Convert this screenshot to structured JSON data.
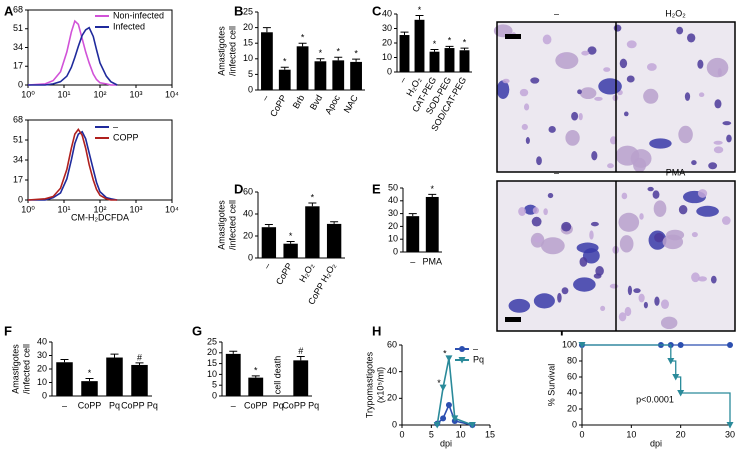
{
  "chart_data": [
    {
      "type": "line",
      "panel": "A",
      "log_x": true,
      "frame": true,
      "x": [
        1,
        3,
        5,
        8,
        12,
        16,
        20,
        25,
        32,
        40,
        50,
        65,
        80,
        100,
        150,
        200,
        300
      ],
      "series": [
        {
          "name": "Non-infected",
          "color": "#d152d8",
          "values": [
            0,
            1,
            4,
            12,
            30,
            48,
            58,
            55,
            42,
            30,
            20,
            10,
            5,
            2,
            1,
            0,
            0
          ]
        },
        {
          "name": "Infected",
          "color": "#1f2a9c",
          "values": [
            0,
            0,
            1,
            3,
            8,
            16,
            25,
            35,
            45,
            50,
            52,
            44,
            32,
            20,
            8,
            3,
            0
          ]
        }
      ],
      "xlim": [
        1,
        10000
      ],
      "xticks": [
        {
          "value": 1,
          "label": "10⁰"
        },
        {
          "value": 10,
          "label": "10¹"
        },
        {
          "value": 100,
          "label": "10²"
        },
        {
          "value": 1000,
          "label": "10³"
        },
        {
          "value": 10000,
          "label": "10⁴"
        }
      ],
      "ylim": [
        0,
        68
      ],
      "yticks": [
        0,
        17,
        34,
        51,
        68
      ]
    },
    {
      "type": "line",
      "log_x": true,
      "frame": true,
      "xlabel": "CM-H₂DCFDA",
      "x": [
        1,
        3,
        5,
        8,
        12,
        16,
        20,
        25,
        32,
        40,
        50,
        65,
        80,
        100,
        150,
        200,
        300
      ],
      "series": [
        {
          "name": "–",
          "color": "#1f2a9c",
          "values": [
            0,
            0,
            2,
            6,
            18,
            34,
            48,
            56,
            58,
            52,
            40,
            26,
            15,
            7,
            2,
            1,
            0
          ]
        },
        {
          "name": "COPP",
          "color": "#b0201e",
          "values": [
            0,
            1,
            3,
            10,
            26,
            44,
            56,
            60,
            55,
            44,
            30,
            17,
            9,
            4,
            1,
            0,
            0
          ]
        }
      ],
      "xlim": [
        1,
        10000
      ],
      "xticks": [
        {
          "value": 1,
          "label": "10⁰"
        },
        {
          "value": 10,
          "label": "10¹"
        },
        {
          "value": 100,
          "label": "10²"
        },
        {
          "value": 1000,
          "label": "10³"
        },
        {
          "value": 10000,
          "label": "10⁴"
        }
      ],
      "ylim": [
        0,
        68
      ],
      "yticks": [
        0,
        17,
        34,
        51,
        68
      ]
    },
    {
      "type": "bar",
      "panel": "B",
      "ylabel": [
        "Amastigotes",
        "/infected cell"
      ],
      "color": "#000000",
      "categories": [
        "–",
        "CoPP",
        "Brb",
        "Bvd",
        "Apoc",
        "NAC"
      ],
      "values": [
        18.5,
        6.5,
        14,
        9.2,
        9.5,
        9
      ],
      "errors": [
        1.5,
        0.8,
        1,
        0.8,
        1,
        0.9
      ],
      "markers": [
        null,
        "*",
        "*",
        "*",
        "*",
        "*"
      ],
      "ylim": [
        0,
        25
      ],
      "yticks": [
        0,
        5,
        10,
        15,
        20,
        25
      ]
    },
    {
      "type": "bar",
      "panel": "C",
      "color": "#000000",
      "categories": [
        "–",
        "H₂O₂",
        "CAT-PEG",
        "SOD-PEG",
        "SOD/CAT-PEG"
      ],
      "values": [
        25.5,
        36,
        14,
        16.5,
        15
      ],
      "errors": [
        2,
        3,
        1.5,
        1.2,
        1.5
      ],
      "markers": [
        null,
        "*",
        "*",
        "*",
        "*"
      ],
      "ylim": [
        0,
        40
      ],
      "yticks": [
        0,
        10,
        20,
        30,
        40
      ]
    },
    {
      "type": "bar",
      "panel": "D",
      "ylabel": [
        "Amastigotes",
        "/infected cell"
      ],
      "color": "#000000",
      "categories": [
        "–",
        "CoPP",
        "H₂O₂",
        "CoPP H₂O₂"
      ],
      "values": [
        28,
        13,
        47,
        31
      ],
      "errors": [
        2.5,
        2,
        3,
        2
      ],
      "markers": [
        null,
        "*",
        "*",
        null
      ],
      "ylim": [
        0,
        60
      ],
      "yticks": [
        0,
        20,
        40,
        60
      ]
    },
    {
      "type": "bar",
      "panel": "E",
      "color": "#000000",
      "categories": [
        "–",
        "PMA"
      ],
      "values": [
        28,
        43
      ],
      "errors": [
        2,
        2
      ],
      "markers": [
        null,
        "*"
      ],
      "ylim": [
        0,
        50
      ],
      "yticks": [
        0,
        10,
        20,
        30,
        40,
        50
      ]
    },
    {
      "type": "bar",
      "panel": "F",
      "ylabel": [
        "Amastigotes",
        "/infected cell"
      ],
      "color": "#000000",
      "categories": [
        "–",
        "CoPP",
        "Pq",
        "CoPP Pq"
      ],
      "values": [
        25,
        11,
        28.5,
        23
      ],
      "errors": [
        2,
        2,
        2.5,
        1.5
      ],
      "markers": [
        null,
        "*",
        null,
        "#"
      ],
      "ylim": [
        0,
        40
      ],
      "yticks": [
        0,
        10,
        20,
        30,
        40
      ]
    },
    {
      "type": "bar",
      "panel": "G",
      "color": "#000000",
      "annotation": "cell death",
      "categories": [
        "–",
        "CoPP",
        "Pq",
        "CoPP Pq"
      ],
      "values": [
        19.5,
        8.5,
        null,
        16.5
      ],
      "errors": [
        1.2,
        0.8,
        null,
        1.8
      ],
      "markers": [
        null,
        "*",
        null,
        "#"
      ],
      "ylim": [
        0,
        25
      ],
      "yticks": [
        0,
        5,
        10,
        15,
        20,
        25
      ]
    },
    {
      "type": "line",
      "panel": "H",
      "ylabel": [
        "Trypomastigotes",
        "(x10⁵/ml)"
      ],
      "xlabel": "dpi",
      "x": [
        6,
        7,
        8,
        9,
        12
      ],
      "series": [
        {
          "name": "–",
          "color": "#2c4fb0",
          "marker": "circle",
          "values": [
            1,
            5,
            15,
            3,
            0
          ]
        },
        {
          "name": "Pq",
          "color": "#2a8a9a",
          "marker": "triangle",
          "values": [
            0,
            28,
            50,
            5,
            0
          ]
        }
      ],
      "markers": [
        null,
        "*",
        "*",
        null,
        null
      ],
      "xlim": [
        0,
        15
      ],
      "xticks": [
        0,
        5,
        10,
        15
      ],
      "ylim": [
        0,
        60
      ],
      "yticks": [
        0,
        20,
        40,
        60
      ]
    },
    {
      "type": "step",
      "panel": "I",
      "ylabel": "% Survival",
      "xlabel": "dpi",
      "annotation": "p<0.0001",
      "series": [
        {
          "color": "#2c4fb0",
          "marker": "circle",
          "x": [
            0,
            16,
            18,
            20,
            30
          ],
          "values": [
            100,
            100,
            100,
            100,
            100
          ]
        },
        {
          "color": "#2a8a9a",
          "marker": "triangle",
          "x": [
            0,
            18,
            19,
            20,
            30
          ],
          "values": [
            100,
            80,
            60,
            40,
            0
          ]
        }
      ],
      "xlim": [
        0,
        30
      ],
      "xticks": [
        0,
        10,
        20,
        30
      ],
      "ylim": [
        0,
        100
      ],
      "yticks": [
        0,
        20,
        40,
        60,
        80,
        100
      ]
    }
  ],
  "micrographs": [
    {
      "labels": [
        "–",
        "H₂O₂"
      ]
    },
    {
      "labels": [
        "–",
        "PMA"
      ]
    }
  ]
}
